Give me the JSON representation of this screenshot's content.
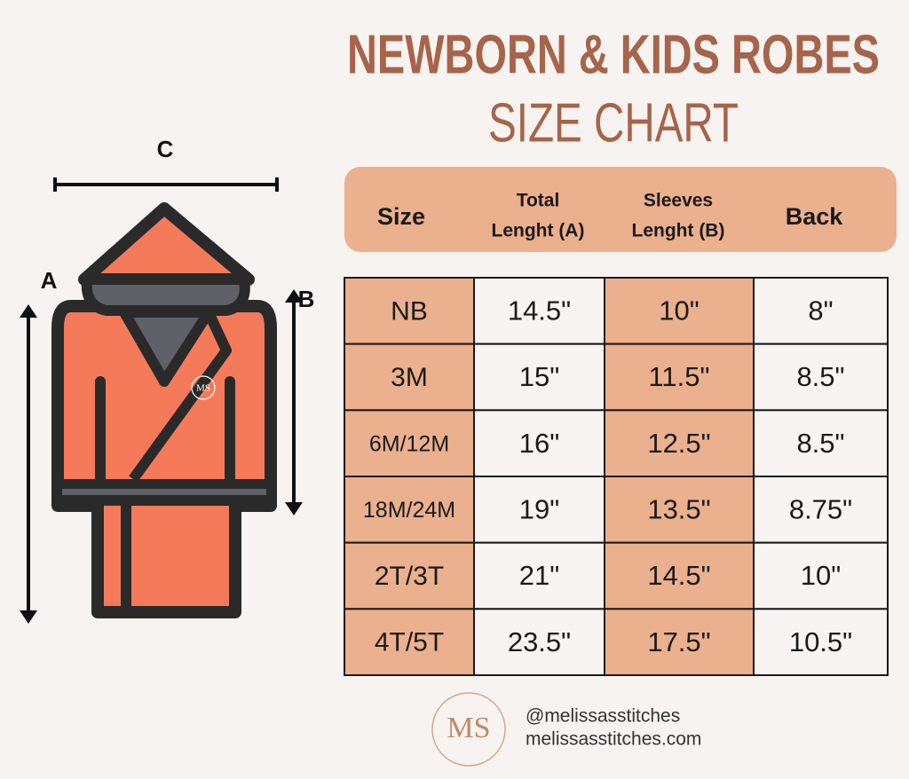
{
  "title": {
    "line1": "NEWBORN & KIDS ROBES",
    "line2": "SIZE CHART"
  },
  "diagram": {
    "width_label": "C",
    "length_label": "A",
    "sleeve_label": "B",
    "badge": "MS"
  },
  "table": {
    "headers": [
      [
        "Size"
      ],
      [
        "Total",
        "Lenght (A)"
      ],
      [
        "Sleeves",
        "Lenght (B)"
      ],
      [
        "Back"
      ]
    ],
    "rows": [
      [
        "NB",
        "14.5\"",
        "10\"",
        "8\""
      ],
      [
        "3M",
        "15\"",
        "11.5\"",
        "8.5\""
      ],
      [
        "6M/12M",
        "16\"",
        "12.5\"",
        "8.5\""
      ],
      [
        "18M/24M",
        "19\"",
        "13.5\"",
        "8.75\""
      ],
      [
        "2T/3T",
        "21\"",
        "14.5\"",
        "10\""
      ],
      [
        "4T/5T",
        "23.5\"",
        "17.5\"",
        "10.5\""
      ]
    ]
  },
  "footer": {
    "logo": "MS",
    "handle": "@melissasstitches",
    "website": "melissasstitches.com"
  }
}
